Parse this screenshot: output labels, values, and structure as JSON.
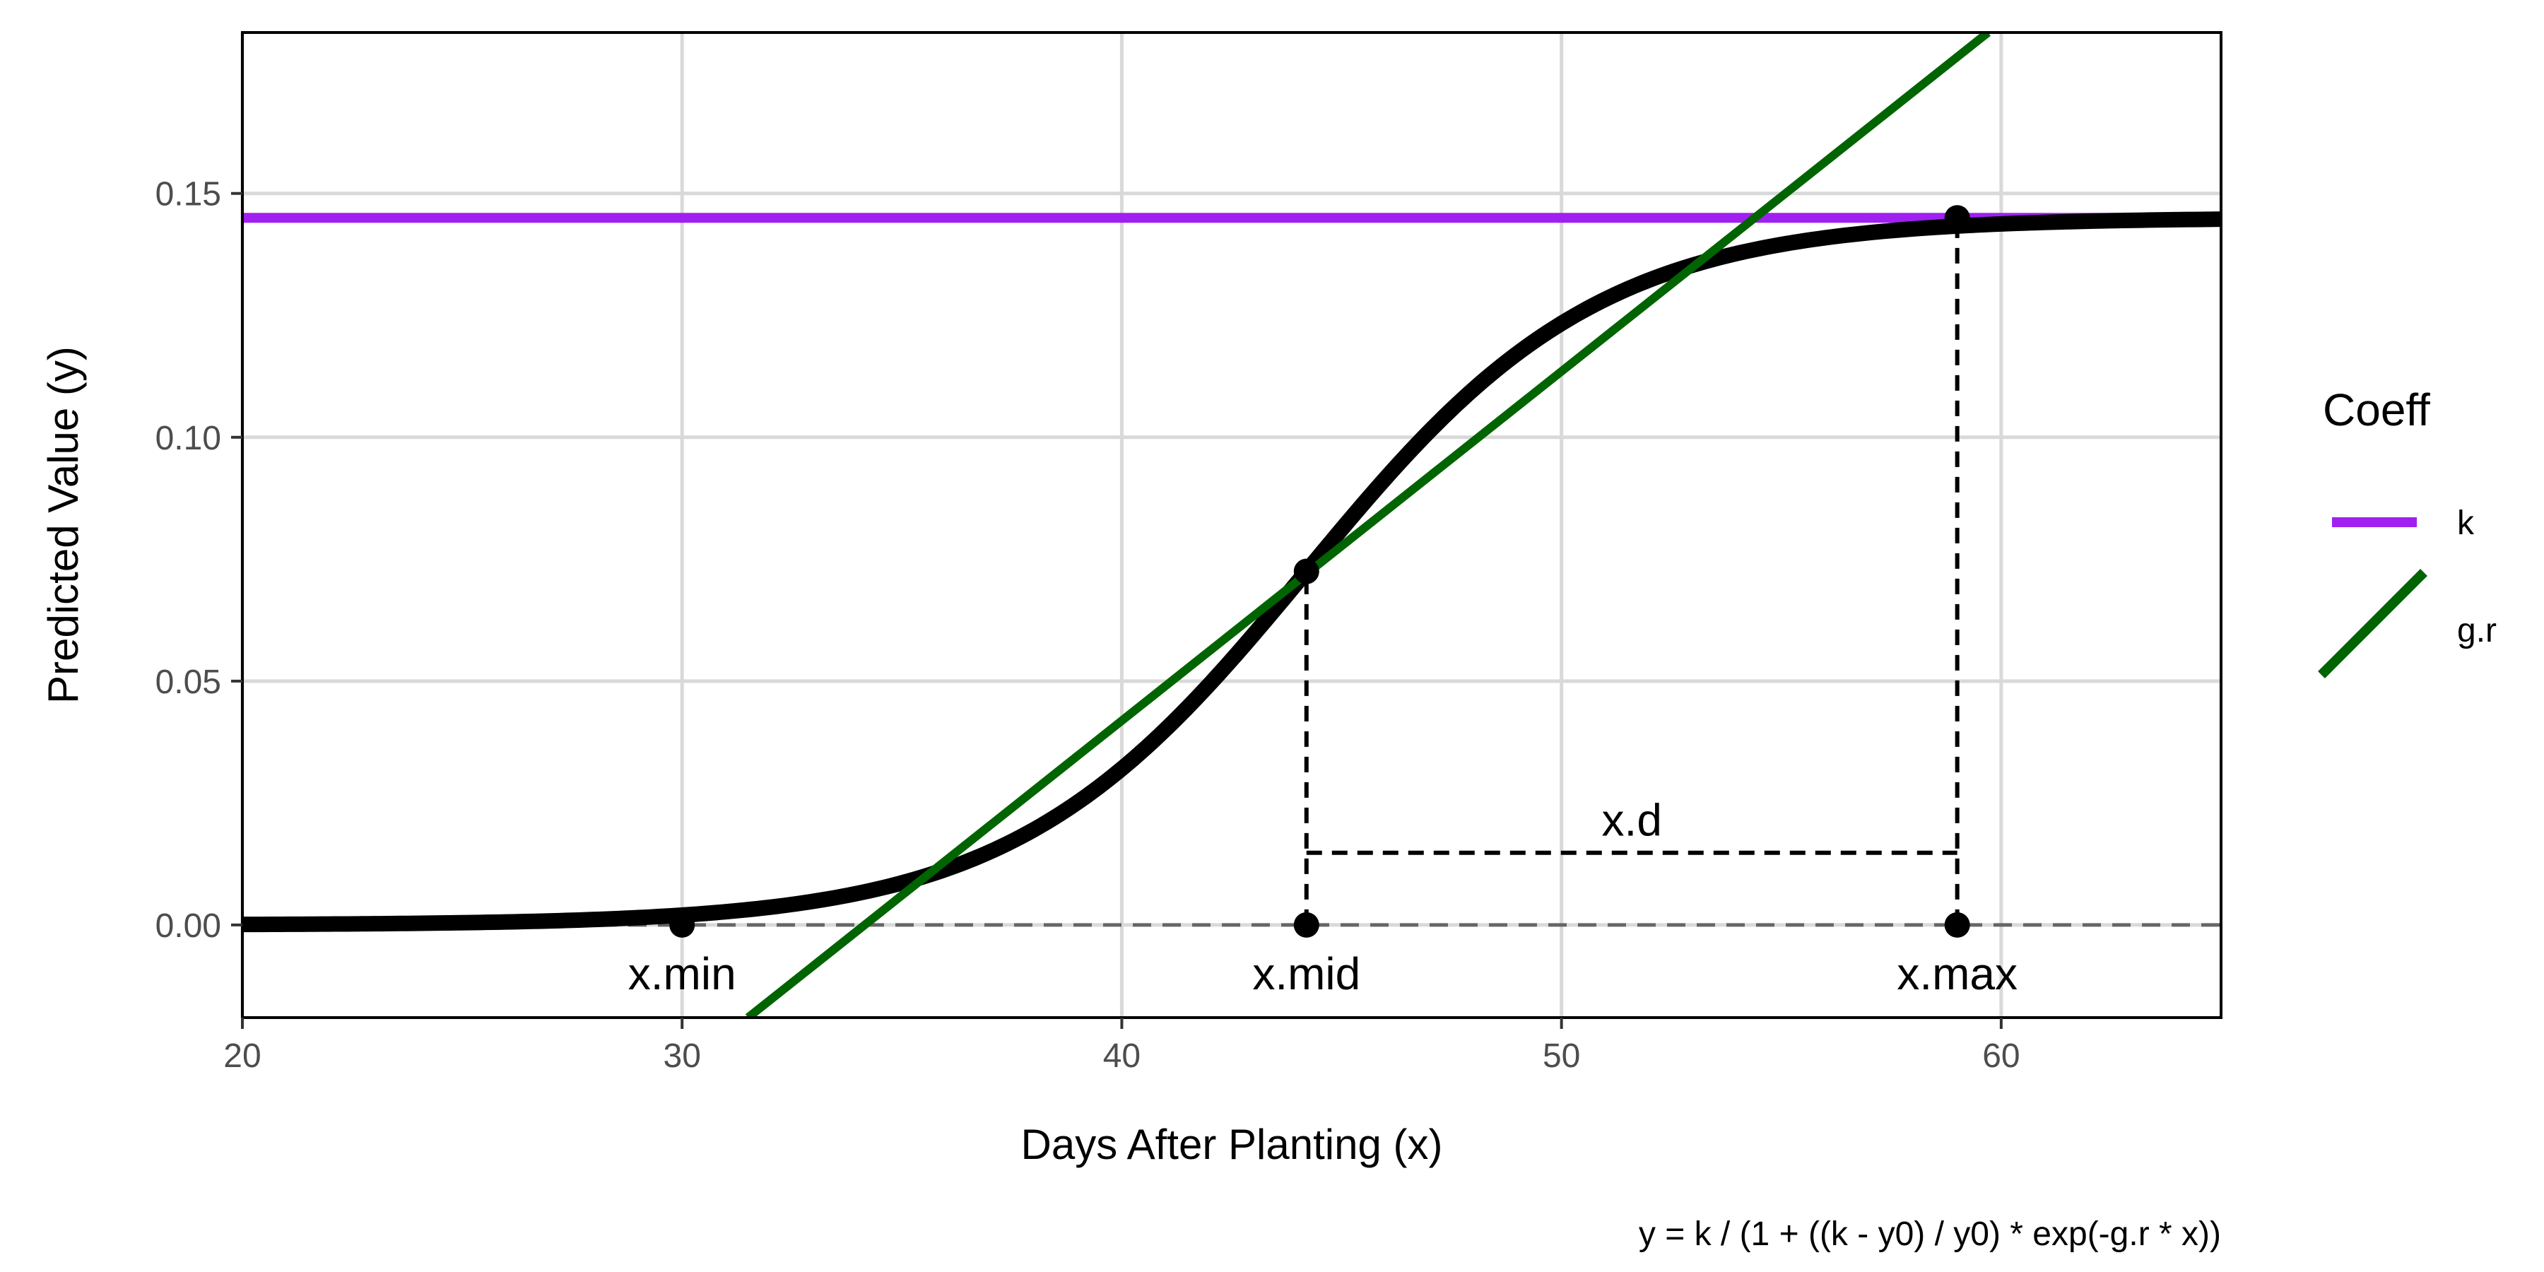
{
  "chart_data": {
    "type": "line",
    "xlabel": "Days After Planting (x)",
    "ylabel": "Predicted Value (y)",
    "caption": "y = k / (1 + ((k - y0) / y0) * exp(-g.r * x))",
    "xlim": [
      20,
      65
    ],
    "ylim": [
      -0.019,
      0.183
    ],
    "x_ticks": [
      20,
      30,
      40,
      50,
      60
    ],
    "x_tick_labels": [
      "20",
      "30",
      "40",
      "50",
      "60"
    ],
    "y_ticks": [
      0.0,
      0.05,
      0.1,
      0.15
    ],
    "y_tick_labels": [
      "0.00",
      "0.05",
      "0.10",
      "0.15"
    ],
    "grid": true,
    "logistic_curve": {
      "k": 0.145,
      "g_r": 0.3,
      "x_mid": 44.2,
      "color": "#000000"
    },
    "legend": {
      "title": "Coeff",
      "position": "right",
      "entries": [
        {
          "label": "k",
          "color": "#A020F0",
          "style": "horizontal"
        },
        {
          "label": "g.r",
          "color": "#006400",
          "style": "diagonal"
        }
      ]
    },
    "k_line": {
      "y": 0.145,
      "color": "#A020F0"
    },
    "gr_line": {
      "points": [
        [
          31.5,
          -0.019
        ],
        [
          59.7,
          0.183
        ]
      ],
      "color": "#006400"
    },
    "zero_line": {
      "y": 0.0,
      "color": "#666666"
    },
    "points": [
      {
        "x": 30.0,
        "y": 0.0
      },
      {
        "x": 44.2,
        "y": 0.0
      },
      {
        "x": 59.0,
        "y": 0.0
      },
      {
        "x": 44.2,
        "y": 0.0725
      },
      {
        "x": 59.0,
        "y": 0.145
      }
    ],
    "segments": [
      {
        "x1": 44.2,
        "y1": 0.0,
        "x2": 44.2,
        "y2": 0.0725
      },
      {
        "x1": 59.0,
        "y1": 0.0,
        "x2": 59.0,
        "y2": 0.145
      },
      {
        "x1": 44.2,
        "y1": 0.0148,
        "x2": 59.0,
        "y2": 0.0148
      }
    ],
    "annotations": [
      {
        "text": "x.min",
        "x": 30.0,
        "y": -0.01
      },
      {
        "text": "x.mid",
        "x": 44.2,
        "y": -0.01
      },
      {
        "text": "x.max",
        "x": 59.0,
        "y": -0.01
      },
      {
        "text": "x.d",
        "x": 51.6,
        "y": 0.0215
      }
    ]
  }
}
